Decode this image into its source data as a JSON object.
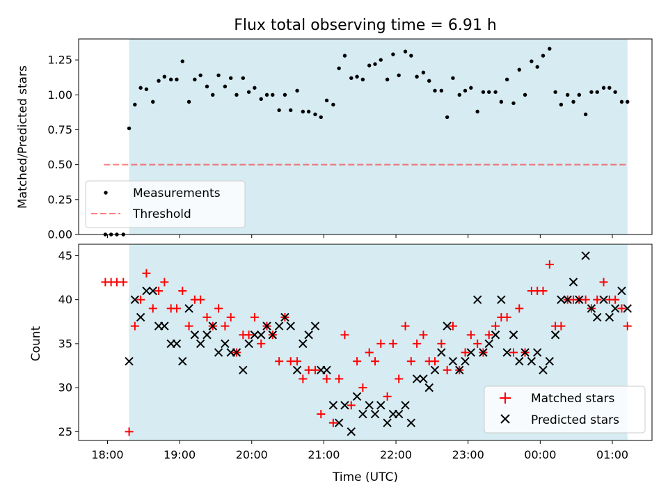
{
  "figure_title": "Flux total observing time = 6.91 h",
  "chart_data": [
    {
      "type": "scatter",
      "ylabel": "Matched/Predicted stars",
      "ylim": [
        0,
        1.4
      ],
      "xlim": [
        17.6,
        25.55
      ],
      "yticks": [
        0.0,
        0.25,
        0.5,
        0.75,
        1.0,
        1.25
      ],
      "ytick_labels": [
        "0.00",
        "0.25",
        "0.50",
        "0.75",
        "1.00",
        "1.25"
      ],
      "observing_window": [
        18.3,
        25.21
      ],
      "legend": {
        "placement": "lower-left",
        "entries": [
          "Measurements",
          "Threshold"
        ]
      },
      "threshold": {
        "name": "Threshold",
        "value": 0.5,
        "x": [
          17.95,
          25.21
        ],
        "color": "#ff0000",
        "style": "dashed"
      },
      "series": [
        {
          "name": "Measurements",
          "color": "#000000",
          "marker": "dot",
          "x": [
            17.97,
            18.05,
            18.13,
            18.22,
            18.3,
            18.38,
            18.46,
            18.54,
            18.63,
            18.71,
            18.79,
            18.88,
            18.96,
            19.04,
            19.13,
            19.21,
            19.29,
            19.38,
            19.46,
            19.54,
            19.63,
            19.71,
            19.79,
            19.88,
            19.96,
            20.04,
            20.13,
            20.21,
            20.29,
            20.38,
            20.46,
            20.54,
            20.63,
            20.71,
            20.79,
            20.88,
            20.96,
            21.04,
            21.13,
            21.21,
            21.29,
            21.38,
            21.46,
            21.54,
            21.63,
            21.71,
            21.79,
            21.88,
            21.96,
            22.04,
            22.13,
            22.21,
            22.29,
            22.38,
            22.46,
            22.54,
            22.63,
            22.71,
            22.79,
            22.88,
            22.96,
            23.04,
            23.13,
            23.21,
            23.29,
            23.38,
            23.46,
            23.54,
            23.63,
            23.71,
            23.79,
            23.88,
            23.96,
            24.04,
            24.13,
            24.21,
            24.29,
            24.38,
            24.46,
            24.54,
            24.63,
            24.71,
            24.79,
            24.88,
            24.96,
            25.04,
            25.13,
            25.21
          ],
          "y": [
            0.0,
            0.0,
            0.0,
            0.0,
            0.76,
            0.93,
            1.05,
            1.04,
            0.95,
            1.1,
            1.13,
            1.11,
            1.11,
            1.24,
            0.95,
            1.11,
            1.14,
            1.06,
            1.0,
            1.14,
            1.06,
            1.12,
            1.0,
            1.12,
            1.02,
            1.05,
            0.97,
            1.0,
            1.0,
            0.89,
            1.0,
            0.89,
            1.03,
            0.88,
            0.88,
            0.86,
            0.84,
            0.96,
            0.93,
            1.19,
            1.28,
            1.12,
            1.13,
            1.11,
            1.21,
            1.22,
            1.25,
            1.11,
            1.29,
            1.14,
            1.31,
            1.28,
            1.13,
            1.16,
            1.1,
            1.03,
            1.03,
            0.84,
            1.12,
            1.0,
            1.03,
            1.05,
            0.88,
            1.02,
            1.02,
            1.02,
            0.95,
            1.11,
            0.94,
            1.18,
            1.0,
            1.24,
            1.2,
            1.28,
            1.33,
            1.02,
            0.93,
            1.0,
            0.95,
            1.0,
            0.86,
            1.02,
            1.02,
            1.05,
            1.05,
            1.02,
            0.95,
            0.95
          ]
        }
      ]
    },
    {
      "type": "scatter",
      "xlabel": "Time (UTC)",
      "ylabel": "Count",
      "ylim": [
        24,
        46.3
      ],
      "xlim": [
        17.6,
        25.55
      ],
      "yticks": [
        25,
        30,
        35,
        40,
        45
      ],
      "ytick_labels": [
        "25",
        "30",
        "35",
        "40",
        "45"
      ],
      "xticks": [
        18,
        19,
        20,
        21,
        22,
        23,
        24,
        25
      ],
      "xtick_labels": [
        "18:00",
        "19:00",
        "20:00",
        "21:00",
        "22:00",
        "23:00",
        "00:00",
        "01:00"
      ],
      "observing_window": [
        18.3,
        25.21
      ],
      "legend": {
        "placement": "lower-right",
        "entries": [
          "Matched stars",
          "Predicted stars"
        ]
      },
      "series": [
        {
          "name": "Matched stars",
          "color": "#ff0000",
          "marker": "plus",
          "x": [
            17.97,
            18.05,
            18.13,
            18.22,
            18.3,
            18.38,
            18.46,
            18.54,
            18.63,
            18.71,
            18.79,
            18.88,
            18.96,
            19.04,
            19.13,
            19.21,
            19.29,
            19.38,
            19.46,
            19.54,
            19.63,
            19.71,
            19.79,
            19.88,
            19.96,
            20.04,
            20.13,
            20.21,
            20.29,
            20.38,
            20.46,
            20.54,
            20.63,
            20.71,
            20.79,
            20.88,
            20.96,
            21.04,
            21.13,
            21.21,
            21.29,
            21.38,
            21.46,
            21.54,
            21.63,
            21.71,
            21.79,
            21.88,
            21.96,
            22.04,
            22.13,
            22.21,
            22.29,
            22.38,
            22.46,
            22.54,
            22.63,
            22.71,
            22.79,
            22.88,
            22.96,
            23.04,
            23.13,
            23.21,
            23.29,
            23.38,
            23.46,
            23.54,
            23.63,
            23.71,
            23.79,
            23.88,
            23.96,
            24.04,
            24.13,
            24.21,
            24.29,
            24.38,
            24.46,
            24.54,
            24.63,
            24.71,
            24.79,
            24.88,
            24.96,
            25.04,
            25.13,
            25.21
          ],
          "y": [
            42,
            42,
            42,
            42,
            25,
            37,
            40,
            43,
            39,
            41,
            42,
            39,
            39,
            41,
            37,
            40,
            40,
            38,
            37,
            39,
            37,
            38,
            34,
            36,
            36,
            38,
            35,
            37,
            36,
            33,
            38,
            33,
            33,
            31,
            32,
            32,
            27,
            31,
            26,
            31,
            36,
            28,
            33,
            30,
            34,
            33,
            35,
            29,
            35,
            31,
            37,
            33,
            35,
            36,
            33,
            33,
            35,
            32,
            37,
            32,
            34,
            36,
            35,
            34,
            36,
            37,
            38,
            38,
            34,
            39,
            34,
            41,
            41,
            41,
            44,
            37,
            37,
            40,
            40,
            40,
            40,
            39,
            40,
            42,
            40,
            40,
            39,
            37
          ]
        },
        {
          "name": "Predicted stars",
          "color": "#000000",
          "marker": "x",
          "x": [
            18.3,
            18.38,
            18.46,
            18.54,
            18.63,
            18.71,
            18.79,
            18.88,
            18.96,
            19.04,
            19.13,
            19.21,
            19.29,
            19.38,
            19.46,
            19.54,
            19.63,
            19.71,
            19.79,
            19.88,
            19.96,
            20.04,
            20.13,
            20.21,
            20.29,
            20.38,
            20.46,
            20.54,
            20.63,
            20.71,
            20.79,
            20.88,
            20.96,
            21.04,
            21.13,
            21.21,
            21.29,
            21.38,
            21.46,
            21.54,
            21.63,
            21.71,
            21.79,
            21.88,
            21.96,
            22.04,
            22.13,
            22.21,
            22.29,
            22.38,
            22.46,
            22.54,
            22.63,
            22.71,
            22.79,
            22.88,
            22.96,
            23.04,
            23.13,
            23.21,
            23.29,
            23.38,
            23.46,
            23.54,
            23.63,
            23.71,
            23.79,
            23.88,
            23.96,
            24.04,
            24.13,
            24.21,
            24.29,
            24.38,
            24.46,
            24.54,
            24.63,
            24.71,
            24.79,
            24.88,
            24.96,
            25.04,
            25.13,
            25.21
          ],
          "y": [
            33,
            40,
            38,
            41,
            41,
            37,
            37,
            35,
            35,
            33,
            39,
            36,
            35,
            36,
            37,
            34,
            35,
            34,
            34,
            32,
            35,
            36,
            36,
            37,
            36,
            37,
            38,
            37,
            32,
            35,
            36,
            37,
            32,
            32,
            28,
            26,
            28,
            25,
            29,
            27,
            28,
            27,
            28,
            26,
            27,
            27,
            28,
            26,
            31,
            31,
            30,
            32,
            34,
            37,
            33,
            32,
            33,
            34,
            40,
            34,
            35,
            36,
            40,
            34,
            36,
            33,
            34,
            33,
            34,
            32,
            33,
            36,
            40,
            40,
            42,
            40,
            45,
            39,
            38,
            40,
            38,
            39,
            41,
            39
          ]
        }
      ]
    }
  ]
}
